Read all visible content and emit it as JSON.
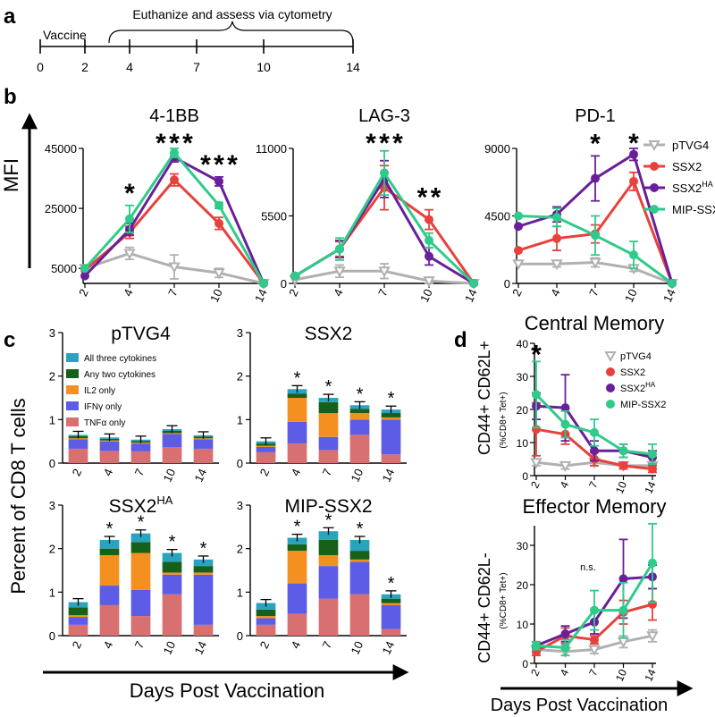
{
  "panels": {
    "a": "a",
    "b": "b",
    "c": "c",
    "d": "d"
  },
  "colors": {
    "pTVG4": "#b0b0b0",
    "SSX2": "#e8413c",
    "SSX2HA": "#6a1f9a",
    "MIP": "#2ecb8a",
    "tnf": "#d86f70",
    "ifn": "#5c5ce6",
    "il2": "#f3901f",
    "two": "#17601a",
    "three": "#2aa4be"
  },
  "timeline": {
    "vaccine_label": "Vaccine",
    "bracket_label": "Euthanize and assess via cytometry",
    "ticks": [
      "0",
      "2",
      "4",
      "7",
      "10",
      "14"
    ]
  },
  "legend_b": [
    "pTVG4",
    "SSX2",
    "SSX2",
    "MIP-SSX2"
  ],
  "ha_superscript": "HA",
  "legend_c": [
    "All three cytokines",
    "Any two cytokines",
    "IL2 only",
    "IFNγ only",
    "TNFα only"
  ],
  "labels": {
    "mfi": "MFI",
    "percent_cd8": "Percent of CD8 T cells",
    "days_post": "Days Post Vaccination",
    "cm_y": "CD44+ CD62L+",
    "em_y": "CD44+ CD62L-",
    "tet_sub": "(%CD8+ Tet+)",
    "ns": "n.s.",
    "star": "*"
  },
  "chart_data": [
    {
      "type": "line",
      "title": "4-1BB",
      "ylabel": "MFI",
      "x": [
        2,
        4,
        7,
        10,
        14
      ],
      "yticks": [
        5000,
        25000,
        45000
      ],
      "ylim": [
        0,
        45000
      ],
      "series": [
        {
          "name": "pTVG4",
          "values": [
            5000,
            10000,
            5500,
            3500,
            0
          ],
          "err": [
            0,
            2000,
            4000,
            1500,
            0
          ]
        },
        {
          "name": "SSX2",
          "values": [
            4500,
            17000,
            34500,
            20000,
            0
          ],
          "err": [
            0,
            2000,
            2000,
            2000,
            0
          ]
        },
        {
          "name": "SSX2HA",
          "values": [
            2500,
            18000,
            42000,
            34000,
            0
          ],
          "err": [
            0,
            2000,
            1500,
            1500,
            0
          ]
        },
        {
          "name": "MIP-SSX2",
          "values": [
            5000,
            21500,
            43500,
            26000,
            0
          ],
          "err": [
            0,
            4500,
            1500,
            1000,
            0
          ]
        }
      ],
      "stars": [
        {
          "x": 4,
          "colors": [
            "SSX2HA"
          ]
        },
        {
          "x": 7,
          "colors": [
            "SSX2HA",
            "SSX2",
            "MIP"
          ]
        },
        {
          "x": 10,
          "colors": [
            "SSX2HA",
            "SSX2",
            "MIP"
          ]
        }
      ]
    },
    {
      "type": "line",
      "title": "LAG-3",
      "x": [
        2,
        4,
        7,
        10,
        14
      ],
      "yticks": [
        0,
        5500,
        11000
      ],
      "ylim": [
        0,
        11000
      ],
      "series": [
        {
          "name": "pTVG4",
          "values": [
            300,
            1000,
            1000,
            200,
            0
          ],
          "err": [
            0,
            500,
            600,
            300,
            0
          ]
        },
        {
          "name": "SSX2",
          "values": [
            600,
            2800,
            7800,
            5200,
            0
          ],
          "err": [
            0,
            600,
            1800,
            800,
            0
          ]
        },
        {
          "name": "SSX2HA",
          "values": [
            600,
            2800,
            8500,
            2200,
            0
          ],
          "err": [
            0,
            700,
            1500,
            700,
            0
          ]
        },
        {
          "name": "MIP-SSX2",
          "values": [
            600,
            2800,
            9000,
            3500,
            0
          ],
          "err": [
            0,
            900,
            1800,
            600,
            0
          ]
        }
      ],
      "stars": [
        {
          "x": 7,
          "colors": [
            "SSX2HA",
            "SSX2",
            "MIP"
          ]
        },
        {
          "x": 10,
          "colors": [
            "SSX2HA",
            "MIP"
          ]
        }
      ]
    },
    {
      "type": "line",
      "title": "PD-1",
      "x": [
        2,
        4,
        7,
        10,
        14
      ],
      "yticks": [
        0,
        4500,
        9000
      ],
      "ylim": [
        0,
        9000
      ],
      "series": [
        {
          "name": "pTVG4",
          "values": [
            1300,
            1300,
            1400,
            1000,
            0
          ],
          "err": [
            0,
            200,
            300,
            200,
            0
          ]
        },
        {
          "name": "SSX2",
          "values": [
            2200,
            3000,
            3300,
            6800,
            0
          ],
          "err": [
            0,
            800,
            600,
            600,
            0
          ]
        },
        {
          "name": "SSX2HA",
          "values": [
            3800,
            4600,
            7000,
            8600,
            0
          ],
          "err": [
            0,
            500,
            1500,
            400,
            0
          ]
        },
        {
          "name": "MIP-SSX2",
          "values": [
            4500,
            4400,
            3200,
            1900,
            0
          ],
          "err": [
            0,
            600,
            1300,
            900,
            0
          ]
        }
      ],
      "stars": [
        {
          "x": 7,
          "colors": [
            "SSX2HA"
          ]
        },
        {
          "x": 10,
          "colors": [
            "SSX2HA"
          ]
        }
      ]
    },
    {
      "type": "bar",
      "stacked": true,
      "title": "pTVG4",
      "categories": [
        "2",
        "4",
        "7",
        "10",
        "14"
      ],
      "yticks": [
        0,
        1,
        2,
        3
      ],
      "ylim": [
        0,
        3
      ],
      "series": [
        {
          "name": "TNFα only",
          "values": [
            0.33,
            0.28,
            0.27,
            0.37,
            0.33
          ]
        },
        {
          "name": "IFNγ only",
          "values": [
            0.22,
            0.22,
            0.18,
            0.3,
            0.22
          ]
        },
        {
          "name": "IL2 only",
          "values": [
            0.02,
            0.02,
            0.02,
            0.02,
            0.02
          ]
        },
        {
          "name": "Any two cytokines",
          "values": [
            0.05,
            0.04,
            0.04,
            0.05,
            0.04
          ]
        },
        {
          "name": "All three cytokines",
          "values": [
            0.03,
            0.03,
            0.03,
            0.04,
            0.03
          ]
        }
      ],
      "stars": []
    },
    {
      "type": "bar",
      "stacked": true,
      "title": "SSX2",
      "categories": [
        "2",
        "4",
        "7",
        "10",
        "14"
      ],
      "yticks": [
        0,
        1,
        2,
        3
      ],
      "ylim": [
        0,
        3
      ],
      "series": [
        {
          "name": "TNFα only",
          "values": [
            0.25,
            0.45,
            0.3,
            0.65,
            0.2
          ]
        },
        {
          "name": "IFNγ only",
          "values": [
            0.12,
            0.5,
            0.3,
            0.35,
            0.8
          ]
        },
        {
          "name": "IL2 only",
          "values": [
            0.03,
            0.55,
            0.55,
            0.15,
            0.05
          ]
        },
        {
          "name": "Any two cytokines",
          "values": [
            0.05,
            0.1,
            0.25,
            0.1,
            0.1
          ]
        },
        {
          "name": "All three cytokines",
          "values": [
            0.05,
            0.1,
            0.1,
            0.08,
            0.08
          ]
        }
      ],
      "stars": [
        "4",
        "7",
        "10",
        "14"
      ]
    },
    {
      "type": "bar",
      "stacked": true,
      "title": "SSX2",
      "title_sup": "HA",
      "categories": [
        "2",
        "4",
        "7",
        "10",
        "14"
      ],
      "yticks": [
        0,
        1,
        2,
        3
      ],
      "ylim": [
        0,
        3
      ],
      "series": [
        {
          "name": "TNFα only",
          "values": [
            0.25,
            0.7,
            0.45,
            0.95,
            0.25
          ]
        },
        {
          "name": "IFNγ only",
          "values": [
            0.18,
            0.45,
            0.6,
            0.45,
            1.15
          ]
        },
        {
          "name": "IL2 only",
          "values": [
            0.04,
            0.7,
            0.85,
            0.05,
            0.05
          ]
        },
        {
          "name": "Any two cytokines",
          "values": [
            0.18,
            0.15,
            0.25,
            0.25,
            0.15
          ]
        },
        {
          "name": "All three cytokines",
          "values": [
            0.12,
            0.2,
            0.2,
            0.2,
            0.15
          ]
        }
      ],
      "stars": [
        "4",
        "7",
        "10",
        "14"
      ]
    },
    {
      "type": "bar",
      "stacked": true,
      "title": "MIP-SSX2",
      "categories": [
        "2",
        "4",
        "7",
        "10",
        "14"
      ],
      "yticks": [
        0,
        1,
        2,
        3
      ],
      "ylim": [
        0,
        3
      ],
      "series": [
        {
          "name": "TNFα only",
          "values": [
            0.25,
            0.5,
            0.85,
            0.95,
            0.15
          ]
        },
        {
          "name": "IFNγ only",
          "values": [
            0.15,
            0.7,
            0.75,
            0.75,
            0.55
          ]
        },
        {
          "name": "IL2 only",
          "values": [
            0.05,
            0.75,
            0.25,
            0.05,
            0.05
          ]
        },
        {
          "name": "Any two cytokines",
          "values": [
            0.15,
            0.15,
            0.35,
            0.2,
            0.1
          ]
        },
        {
          "name": "All three cytokines",
          "values": [
            0.15,
            0.15,
            0.2,
            0.25,
            0.1
          ]
        }
      ],
      "stars": [
        "4",
        "7",
        "10",
        "14"
      ]
    },
    {
      "type": "line",
      "title": "Central Memory",
      "ylabel": "CD44+ CD62L+",
      "x": [
        2,
        4,
        7,
        10,
        14
      ],
      "yticks": [
        0,
        10,
        20,
        30,
        40
      ],
      "ylim": [
        0,
        40
      ],
      "series": [
        {
          "name": "pTVG4",
          "values": [
            4,
            3,
            4,
            3,
            3
          ],
          "err": [
            1,
            1,
            1,
            1,
            1
          ]
        },
        {
          "name": "SSX2",
          "values": [
            14,
            12.5,
            5,
            3,
            2
          ],
          "err": [
            8,
            3,
            2,
            1,
            1
          ]
        },
        {
          "name": "SSX2HA",
          "values": [
            21,
            20.5,
            7.5,
            7.5,
            5.5
          ],
          "err": [
            4,
            10,
            3,
            2,
            2
          ]
        },
        {
          "name": "MIP-SSX2",
          "values": [
            24.5,
            15.5,
            13,
            7.5,
            6.5
          ],
          "err": [
            10,
            4,
            4,
            2,
            3
          ]
        }
      ],
      "stars": [
        {
          "x": 2,
          "colors": [
            "MIP"
          ]
        }
      ]
    },
    {
      "type": "line",
      "title": "Effector Memory",
      "ylabel": "CD44+ CD62L-",
      "x": [
        2,
        4,
        7,
        10,
        14
      ],
      "yticks": [
        0,
        10,
        20,
        30
      ],
      "ylim": [
        0,
        35
      ],
      "series": [
        {
          "name": "pTVG4",
          "values": [
            3.5,
            3,
            3.5,
            5.5,
            7
          ],
          "err": [
            1,
            1,
            1,
            1.5,
            1.5
          ]
        },
        {
          "name": "SSX2",
          "values": [
            3,
            7,
            6,
            13,
            15
          ],
          "err": [
            1,
            2,
            1,
            3,
            4
          ]
        },
        {
          "name": "SSX2HA",
          "values": [
            4.5,
            7.5,
            10.5,
            21.5,
            22
          ],
          "err": [
            1,
            2,
            3,
            10,
            3
          ]
        },
        {
          "name": "MIP-SSX2",
          "values": [
            4.5,
            4,
            13.5,
            13.5,
            25.5
          ],
          "err": [
            1,
            2,
            5,
            7,
            10
          ]
        }
      ],
      "stars": []
    }
  ]
}
